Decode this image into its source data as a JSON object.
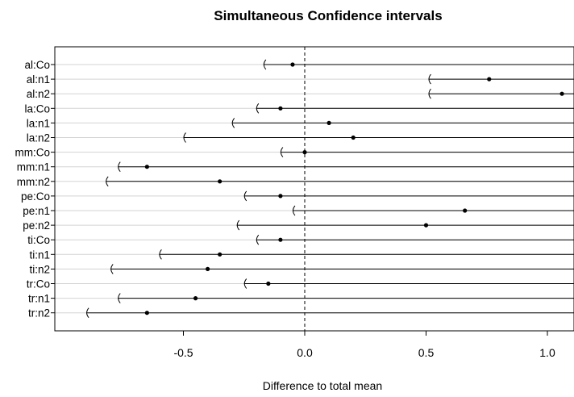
{
  "chart_data": {
    "type": "interval",
    "title": "Simultaneous Confidence intervals",
    "xlabel": "Difference to total mean",
    "ylabel": "",
    "xlim": [
      -0.9,
      1.11
    ],
    "xticks": [
      -0.5,
      0.0,
      0.5,
      1.0
    ],
    "xtick_labels": [
      "-0.5",
      "0.0",
      "0.5",
      "1.0"
    ],
    "reference_line": 0.0,
    "grid": "horizontal",
    "intervals": [
      {
        "label": "al:Co",
        "estimate": -0.05,
        "lower": -0.17
      },
      {
        "label": "al:n1",
        "estimate": 0.76,
        "lower": 0.51
      },
      {
        "label": "al:n2",
        "estimate": 1.06,
        "lower": 0.51
      },
      {
        "label": "la:Co",
        "estimate": -0.1,
        "lower": -0.2
      },
      {
        "label": "la:n1",
        "estimate": 0.1,
        "lower": -0.3
      },
      {
        "label": "la:n2",
        "estimate": 0.2,
        "lower": -0.5
      },
      {
        "label": "mm:Co",
        "estimate": 0.0,
        "lower": -0.1
      },
      {
        "label": "mm:n1",
        "estimate": -0.65,
        "lower": -0.77
      },
      {
        "label": "mm:n2",
        "estimate": -0.35,
        "lower": -0.82
      },
      {
        "label": "pe:Co",
        "estimate": -0.1,
        "lower": -0.25
      },
      {
        "label": "pe:n1",
        "estimate": 0.66,
        "lower": -0.05
      },
      {
        "label": "pe:n2",
        "estimate": 0.5,
        "lower": -0.28
      },
      {
        "label": "ti:Co",
        "estimate": -0.1,
        "lower": -0.2
      },
      {
        "label": "ti:n1",
        "estimate": -0.35,
        "lower": -0.6
      },
      {
        "label": "ti:n2",
        "estimate": -0.4,
        "lower": -0.8
      },
      {
        "label": "tr:Co",
        "estimate": -0.15,
        "lower": -0.25
      },
      {
        "label": "tr:n1",
        "estimate": -0.45,
        "lower": -0.77
      },
      {
        "label": "tr:n2",
        "estimate": -0.65,
        "lower": -0.9
      }
    ]
  }
}
